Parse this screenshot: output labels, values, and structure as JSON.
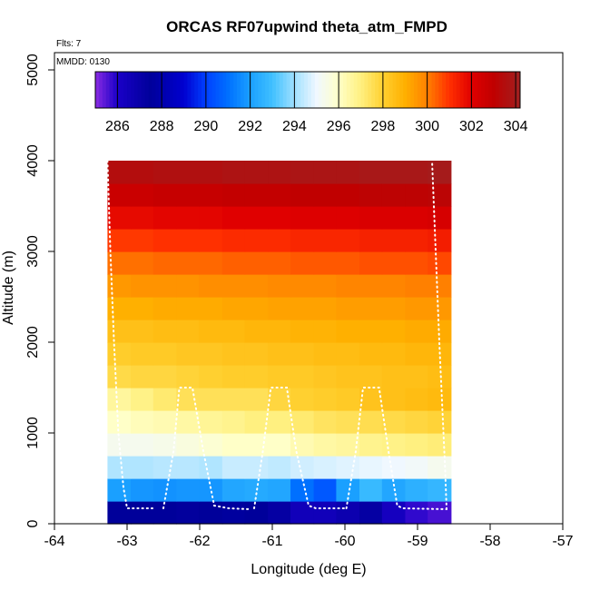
{
  "chart_data": {
    "type": "heatmap",
    "title": "ORCAS RF07upwind theta_atm_FMPD",
    "annotations": {
      "flights": "Flts: 7",
      "date": "MMDD: 0130"
    },
    "xlabel": "Longitude (deg E)",
    "ylabel": "Altitude (m)",
    "xlim": [
      -64,
      -57
    ],
    "ylim": [
      0,
      5200
    ],
    "xticks": [
      -64,
      -63,
      -62,
      -61,
      -60,
      -59,
      -58,
      -57
    ],
    "yticks": [
      0,
      1000,
      2000,
      3000,
      4000,
      5000
    ],
    "colorbar": {
      "range": [
        285,
        304.2
      ],
      "ticks": [
        286,
        288,
        290,
        292,
        294,
        296,
        298,
        300,
        302,
        304
      ],
      "stops": [
        {
          "v": 285.0,
          "c": "#8a2be2"
        },
        {
          "v": 286.0,
          "c": "#1a00c8"
        },
        {
          "v": 287.5,
          "c": "#00009a"
        },
        {
          "v": 289.0,
          "c": "#0000d0"
        },
        {
          "v": 290.0,
          "c": "#0040ff"
        },
        {
          "v": 291.0,
          "c": "#0070ff"
        },
        {
          "v": 292.0,
          "c": "#1aa0ff"
        },
        {
          "v": 293.0,
          "c": "#40c0ff"
        },
        {
          "v": 294.0,
          "c": "#a0e0ff"
        },
        {
          "v": 295.0,
          "c": "#f0f8ff"
        },
        {
          "v": 296.0,
          "c": "#ffffc8"
        },
        {
          "v": 297.0,
          "c": "#fff080"
        },
        {
          "v": 298.0,
          "c": "#ffd030"
        },
        {
          "v": 299.0,
          "c": "#ffb000"
        },
        {
          "v": 300.0,
          "c": "#ff8000"
        },
        {
          "v": 301.0,
          "c": "#ff3000"
        },
        {
          "v": 302.0,
          "c": "#e00000"
        },
        {
          "v": 303.0,
          "c": "#c00000"
        },
        {
          "v": 304.2,
          "c": "#a02020"
        }
      ]
    },
    "grid": {
      "x_edges": [
        -63.27,
        -62.95,
        -62.64,
        -62.32,
        -62.01,
        -61.69,
        -61.38,
        -61.06,
        -60.75,
        -60.43,
        -60.12,
        -59.8,
        -59.49,
        -59.17,
        -58.86,
        -58.54
      ],
      "y_edges": [
        0,
        250,
        500,
        750,
        1000,
        1250,
        1500,
        1750,
        2000,
        2250,
        2500,
        2750,
        3000,
        3250,
        3500,
        3750,
        4000
      ],
      "values": [
        [
          287.5,
          287.5,
          287.5,
          287.4,
          287.5,
          287.6,
          287.5,
          287.2,
          286.5,
          286.5,
          286.8,
          287.2,
          286.3,
          285.8,
          285.6
        ],
        [
          292.0,
          291.8,
          291.7,
          291.8,
          291.8,
          292.2,
          292.3,
          292.2,
          291.0,
          290.5,
          292.0,
          292.8,
          292.2,
          292.5,
          292.7
        ],
        [
          294.2,
          294.2,
          294.3,
          294.3,
          294.2,
          294.5,
          294.5,
          294.4,
          294.6,
          294.7,
          294.8,
          294.9,
          295.0,
          295.1,
          295.3
        ],
        [
          295.3,
          295.3,
          295.4,
          295.6,
          295.8,
          296.0,
          296.0,
          296.0,
          296.3,
          296.5,
          296.6,
          296.8,
          296.9,
          297.0,
          297.1
        ],
        [
          296.0,
          296.2,
          296.3,
          296.5,
          296.7,
          296.8,
          297.0,
          297.0,
          297.2,
          297.4,
          297.5,
          297.6,
          297.7,
          297.8,
          297.9
        ],
        [
          296.6,
          296.9,
          297.2,
          297.5,
          297.5,
          297.5,
          297.5,
          297.8,
          298.0,
          298.1,
          298.2,
          298.4,
          298.5,
          298.6,
          298.7
        ],
        [
          297.7,
          297.8,
          297.8,
          297.9,
          298.0,
          298.1,
          298.1,
          298.2,
          298.2,
          298.3,
          298.4,
          298.4,
          298.5,
          298.5,
          298.6
        ],
        [
          298.1,
          298.2,
          298.2,
          298.3,
          298.3,
          298.4,
          298.4,
          298.5,
          298.5,
          298.6,
          298.6,
          298.7,
          298.7,
          298.8,
          298.8
        ],
        [
          298.5,
          298.5,
          298.6,
          298.6,
          298.7,
          298.7,
          298.8,
          298.8,
          298.9,
          298.9,
          299.0,
          299.0,
          299.0,
          299.1,
          299.1
        ],
        [
          299.0,
          299.0,
          299.1,
          299.1,
          299.1,
          299.2,
          299.2,
          299.3,
          299.3,
          299.3,
          299.4,
          299.4,
          299.4,
          299.5,
          299.5
        ],
        [
          299.5,
          299.6,
          299.6,
          299.6,
          299.7,
          299.7,
          299.7,
          299.8,
          299.8,
          299.8,
          299.9,
          299.9,
          299.9,
          300.0,
          300.0
        ],
        [
          300.2,
          300.2,
          300.3,
          300.3,
          300.3,
          300.4,
          300.4,
          300.4,
          300.5,
          300.5,
          300.5,
          300.6,
          300.6,
          300.6,
          300.7
        ],
        [
          300.9,
          300.9,
          301.0,
          301.0,
          301.0,
          301.1,
          301.1,
          301.1,
          301.2,
          301.2,
          301.2,
          301.3,
          301.3,
          301.3,
          301.4
        ],
        [
          301.8,
          301.8,
          301.9,
          301.9,
          301.9,
          302.0,
          302.0,
          302.0,
          302.1,
          302.1,
          302.1,
          302.2,
          302.2,
          302.2,
          302.3
        ],
        [
          302.7,
          302.7,
          302.8,
          302.8,
          302.8,
          302.9,
          302.9,
          302.9,
          303.0,
          303.0,
          303.0,
          303.1,
          303.1,
          303.1,
          303.2
        ],
        [
          303.5,
          303.5,
          303.6,
          303.6,
          303.6,
          303.7,
          303.7,
          303.7,
          303.8,
          303.8,
          303.8,
          303.9,
          303.9,
          303.9,
          304.0
        ]
      ]
    },
    "flight_track": {
      "segments": [
        [
          [
            -63.27,
            4000
          ],
          [
            -63.23,
            3000
          ],
          [
            -63.18,
            2000
          ],
          [
            -63.12,
            1000
          ],
          [
            -63.05,
            400
          ],
          [
            -63.0,
            170
          ],
          [
            -62.65,
            170
          ]
        ],
        [
          [
            -62.5,
            170
          ],
          [
            -62.36,
            800
          ],
          [
            -62.28,
            1500
          ],
          [
            -62.1,
            1500
          ],
          [
            -61.95,
            800
          ],
          [
            -61.8,
            200
          ],
          [
            -61.6,
            170
          ],
          [
            -61.3,
            160
          ]
        ],
        [
          [
            -61.25,
            170
          ],
          [
            -61.13,
            800
          ],
          [
            -61.02,
            1500
          ],
          [
            -60.8,
            1500
          ],
          [
            -60.67,
            800
          ],
          [
            -60.5,
            200
          ],
          [
            -60.4,
            170
          ],
          [
            -60.0,
            170
          ]
        ],
        [
          [
            -59.98,
            170
          ],
          [
            -59.85,
            800
          ],
          [
            -59.75,
            1500
          ],
          [
            -59.53,
            1500
          ],
          [
            -59.4,
            800
          ],
          [
            -59.28,
            200
          ],
          [
            -59.2,
            170
          ],
          [
            -58.6,
            160
          ]
        ],
        [
          [
            -58.6,
            160
          ],
          [
            -58.62,
            600
          ],
          [
            -58.7,
            2000
          ],
          [
            -58.75,
            3000
          ],
          [
            -58.8,
            4000
          ]
        ]
      ]
    }
  }
}
